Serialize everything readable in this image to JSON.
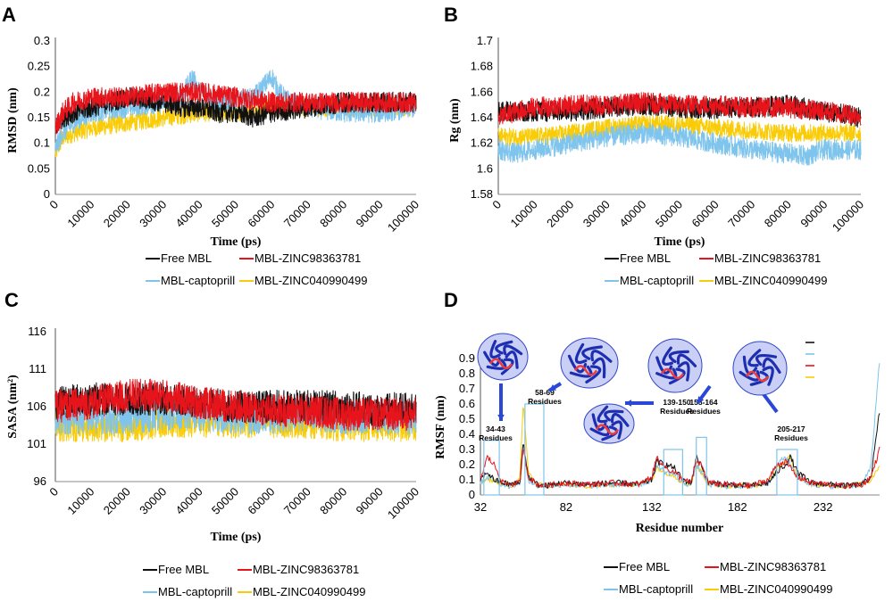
{
  "colors": {
    "Free MBL": "#111111",
    "MBL-ZINC98363781": "#e8141b",
    "MBL-captoprill": "#7fc4ec",
    "MBL-ZINC040990499": "#f9cc07"
  },
  "chart_data": [
    {
      "panel": "A",
      "type": "line",
      "xlabel": "Time (ps)",
      "ylabel": "RMSD (nm)",
      "xlim": [
        0,
        100000
      ],
      "ylim": [
        0,
        0.3
      ],
      "xticks": [
        "0",
        "10000",
        "20000",
        "30000",
        "40000",
        "50000",
        "60000",
        "70000",
        "80000",
        "90000",
        "100000"
      ],
      "yticks": [
        "0",
        "0.05",
        "0.1",
        "0.15",
        "0.2",
        "0.25",
        "0.3"
      ],
      "series": [
        {
          "name": "Free MBL",
          "x": [
            0,
            2000,
            5000,
            10000,
            15000,
            20000,
            30000,
            35000,
            40000,
            45000,
            50000,
            55000,
            60000,
            70000,
            80000,
            90000,
            100000
          ],
          "y": [
            0.13,
            0.15,
            0.16,
            0.17,
            0.18,
            0.19,
            0.18,
            0.17,
            0.17,
            0.16,
            0.16,
            0.15,
            0.16,
            0.17,
            0.18,
            0.18,
            0.18
          ],
          "noise": 0.02
        },
        {
          "name": "MBL-ZINC98363781",
          "x": [
            0,
            2000,
            5000,
            10000,
            15000,
            20000,
            30000,
            40000,
            50000,
            60000,
            70000,
            80000,
            90000,
            100000
          ],
          "y": [
            0.13,
            0.16,
            0.18,
            0.19,
            0.19,
            0.19,
            0.2,
            0.2,
            0.19,
            0.18,
            0.18,
            0.18,
            0.18,
            0.18
          ],
          "noise": 0.02
        },
        {
          "name": "MBL-captoprill",
          "x": [
            0,
            2000,
            5000,
            10000,
            20000,
            30000,
            35000,
            38000,
            40000,
            45000,
            50000,
            55000,
            60000,
            62000,
            65000,
            70000,
            80000,
            90000,
            100000
          ],
          "y": [
            0.09,
            0.12,
            0.14,
            0.16,
            0.17,
            0.18,
            0.19,
            0.23,
            0.2,
            0.18,
            0.18,
            0.19,
            0.23,
            0.2,
            0.18,
            0.17,
            0.16,
            0.16,
            0.17
          ],
          "noise": 0.02
        },
        {
          "name": "MBL-ZINC040990499",
          "x": [
            0,
            2000,
            5000,
            10000,
            20000,
            30000,
            40000,
            50000,
            60000,
            70000,
            80000,
            90000,
            100000
          ],
          "y": [
            0.08,
            0.11,
            0.12,
            0.13,
            0.14,
            0.15,
            0.16,
            0.16,
            0.17,
            0.17,
            0.17,
            0.17,
            0.17
          ],
          "noise": 0.018
        }
      ],
      "legend": [
        "Free MBL",
        "MBL-ZINC98363781",
        "MBL-captoprill",
        "MBL-ZINC040990499"
      ]
    },
    {
      "panel": "B",
      "type": "line",
      "xlabel": "Time (ps)",
      "ylabel": "Rg (nm)",
      "xlim": [
        0,
        100000
      ],
      "ylim": [
        1.58,
        1.7
      ],
      "xticks": [
        "0",
        "10000",
        "20000",
        "30000",
        "40000",
        "50000",
        "60000",
        "70000",
        "80000",
        "90000",
        "100000"
      ],
      "yticks": [
        "1.58",
        "1.6",
        "1.62",
        "1.64",
        "1.66",
        "1.68",
        "1.7"
      ],
      "series": [
        {
          "name": "Free MBL",
          "x": [
            0,
            5000,
            10000,
            20000,
            30000,
            40000,
            50000,
            60000,
            70000,
            80000,
            90000,
            100000
          ],
          "y": [
            1.645,
            1.645,
            1.645,
            1.645,
            1.648,
            1.65,
            1.648,
            1.647,
            1.648,
            1.65,
            1.645,
            1.64
          ],
          "noise": 0.008
        },
        {
          "name": "MBL-ZINC98363781",
          "x": [
            0,
            5000,
            10000,
            20000,
            30000,
            40000,
            50000,
            60000,
            70000,
            80000,
            90000,
            100000
          ],
          "y": [
            1.64,
            1.645,
            1.648,
            1.65,
            1.65,
            1.652,
            1.65,
            1.65,
            1.648,
            1.648,
            1.645,
            1.642
          ],
          "noise": 0.008
        },
        {
          "name": "MBL-captoprill",
          "x": [
            0,
            5000,
            10000,
            20000,
            30000,
            40000,
            50000,
            60000,
            70000,
            80000,
            85000,
            90000,
            100000
          ],
          "y": [
            1.615,
            1.612,
            1.615,
            1.62,
            1.625,
            1.628,
            1.625,
            1.62,
            1.615,
            1.612,
            1.61,
            1.615,
            1.615
          ],
          "noise": 0.008
        },
        {
          "name": "MBL-ZINC040990499",
          "x": [
            0,
            5000,
            10000,
            20000,
            30000,
            40000,
            50000,
            60000,
            70000,
            80000,
            90000,
            100000
          ],
          "y": [
            1.625,
            1.625,
            1.625,
            1.628,
            1.632,
            1.635,
            1.635,
            1.632,
            1.63,
            1.628,
            1.628,
            1.628
          ],
          "noise": 0.007
        }
      ],
      "legend": [
        "Free MBL",
        "MBL-ZINC98363781",
        "MBL-captoprill",
        "MBL-ZINC040990499"
      ]
    },
    {
      "panel": "C",
      "type": "line",
      "xlabel": "Time (ps)",
      "ylabel": "SASA (nm²)",
      "xlim": [
        0,
        100000
      ],
      "ylim": [
        96,
        116
      ],
      "xticks": [
        "0",
        "10000",
        "20000",
        "30000",
        "40000",
        "50000",
        "60000",
        "70000",
        "80000",
        "90000",
        "100000"
      ],
      "yticks": [
        "96",
        "101",
        "106",
        "111",
        "116"
      ],
      "series": [
        {
          "name": "Free MBL",
          "x": [
            0,
            10000,
            20000,
            30000,
            40000,
            50000,
            60000,
            70000,
            80000,
            90000,
            100000
          ],
          "y": [
            106.5,
            107,
            107,
            107,
            106.5,
            106,
            106,
            106,
            106,
            105.5,
            106
          ],
          "noise": 2.2
        },
        {
          "name": "MBL-ZINC98363781",
          "x": [
            0,
            10000,
            20000,
            30000,
            40000,
            50000,
            60000,
            70000,
            80000,
            90000,
            100000
          ],
          "y": [
            106,
            106.5,
            107.5,
            107.5,
            106.5,
            106,
            105.5,
            105.5,
            105,
            105,
            105
          ],
          "noise": 2.2
        },
        {
          "name": "MBL-captoprill",
          "x": [
            0,
            10000,
            20000,
            30000,
            40000,
            50000,
            60000,
            70000,
            80000,
            90000,
            100000
          ],
          "y": [
            104.5,
            104.5,
            104.5,
            105,
            105,
            104.5,
            104.5,
            105,
            104.5,
            104.5,
            104.5
          ],
          "noise": 2.2
        },
        {
          "name": "MBL-ZINC040990499",
          "x": [
            0,
            10000,
            20000,
            30000,
            40000,
            50000,
            60000,
            70000,
            80000,
            90000,
            100000
          ],
          "y": [
            103.5,
            103.5,
            103.5,
            104,
            104,
            104,
            104,
            104,
            103.5,
            103.5,
            103.5
          ],
          "noise": 2.2
        }
      ],
      "legend": [
        "Free MBL",
        "MBL-ZINC98363781",
        "MBL-captoprill",
        "MBL-ZINC040990499"
      ]
    },
    {
      "panel": "D",
      "type": "line",
      "xlabel": "Residue number",
      "ylabel": "RMSF (nm)",
      "xlim": [
        32,
        265
      ],
      "ylim": [
        0,
        0.9
      ],
      "xticks": [
        "32",
        "82",
        "132",
        "182",
        "232"
      ],
      "yticks": [
        "0",
        "0.1",
        "0.2",
        "0.3",
        "0.4",
        "0.5",
        "0.6",
        "0.7",
        "0.8",
        "0.9"
      ],
      "series": [
        {
          "name": "Free MBL",
          "x": [
            32,
            36,
            40,
            45,
            50,
            55,
            57,
            60,
            65,
            70,
            80,
            95,
            110,
            125,
            132,
            135,
            140,
            145,
            150,
            155,
            158,
            161,
            165,
            175,
            190,
            200,
            205,
            210,
            213,
            217,
            225,
            235,
            245,
            255,
            260,
            265
          ],
          "y": [
            0.1,
            0.15,
            0.1,
            0.08,
            0.07,
            0.08,
            0.35,
            0.12,
            0.07,
            0.06,
            0.08,
            0.07,
            0.08,
            0.07,
            0.1,
            0.22,
            0.2,
            0.18,
            0.1,
            0.08,
            0.25,
            0.2,
            0.08,
            0.07,
            0.06,
            0.08,
            0.15,
            0.2,
            0.25,
            0.15,
            0.08,
            0.07,
            0.06,
            0.07,
            0.12,
            0.55
          ],
          "noise": 0.02
        },
        {
          "name": "MBL-ZINC98363781",
          "x": [
            32,
            36,
            40,
            45,
            50,
            55,
            57,
            60,
            65,
            70,
            80,
            95,
            110,
            125,
            132,
            135,
            140,
            145,
            150,
            155,
            158,
            161,
            165,
            175,
            190,
            200,
            205,
            210,
            213,
            217,
            225,
            235,
            245,
            255,
            260,
            265
          ],
          "y": [
            0.1,
            0.25,
            0.2,
            0.08,
            0.07,
            0.08,
            0.3,
            0.12,
            0.07,
            0.06,
            0.08,
            0.07,
            0.08,
            0.07,
            0.12,
            0.25,
            0.18,
            0.15,
            0.1,
            0.08,
            0.22,
            0.2,
            0.08,
            0.07,
            0.06,
            0.1,
            0.2,
            0.22,
            0.18,
            0.12,
            0.08,
            0.07,
            0.06,
            0.07,
            0.12,
            0.3
          ],
          "noise": 0.02
        },
        {
          "name": "MBL-captoprill",
          "x": [
            32,
            36,
            40,
            45,
            50,
            55,
            57,
            60,
            65,
            70,
            80,
            95,
            110,
            125,
            132,
            135,
            140,
            145,
            150,
            155,
            158,
            161,
            165,
            175,
            190,
            200,
            205,
            210,
            213,
            217,
            225,
            235,
            245,
            255,
            260,
            265
          ],
          "y": [
            0.08,
            0.12,
            0.1,
            0.07,
            0.06,
            0.08,
            0.3,
            0.1,
            0.06,
            0.06,
            0.07,
            0.06,
            0.07,
            0.07,
            0.1,
            0.2,
            0.15,
            0.14,
            0.08,
            0.07,
            0.2,
            0.15,
            0.07,
            0.06,
            0.06,
            0.08,
            0.2,
            0.25,
            0.2,
            0.12,
            0.07,
            0.06,
            0.06,
            0.07,
            0.2,
            0.88
          ],
          "noise": 0.02
        },
        {
          "name": "MBL-ZINC040990499",
          "x": [
            32,
            36,
            40,
            45,
            50,
            55,
            57,
            60,
            65,
            70,
            80,
            95,
            110,
            125,
            132,
            135,
            140,
            145,
            150,
            155,
            158,
            161,
            165,
            175,
            190,
            200,
            205,
            210,
            213,
            217,
            225,
            235,
            245,
            255,
            260,
            265
          ],
          "y": [
            0.08,
            0.1,
            0.1,
            0.07,
            0.06,
            0.1,
            0.6,
            0.15,
            0.07,
            0.06,
            0.07,
            0.06,
            0.07,
            0.07,
            0.1,
            0.18,
            0.15,
            0.13,
            0.08,
            0.07,
            0.2,
            0.15,
            0.07,
            0.06,
            0.06,
            0.08,
            0.18,
            0.22,
            0.25,
            0.12,
            0.07,
            0.06,
            0.06,
            0.07,
            0.1,
            0.2
          ],
          "noise": 0.018
        }
      ],
      "annotations": [
        "34-43 Residues",
        "58-69 Residues",
        "139-150 Residues",
        "158-164 Residues",
        "205-217 Residues"
      ],
      "legend": [
        "Free MBL",
        "MBL-ZINC98363781",
        "MBL-captoprill",
        "MBL-ZINC040990499"
      ]
    }
  ]
}
